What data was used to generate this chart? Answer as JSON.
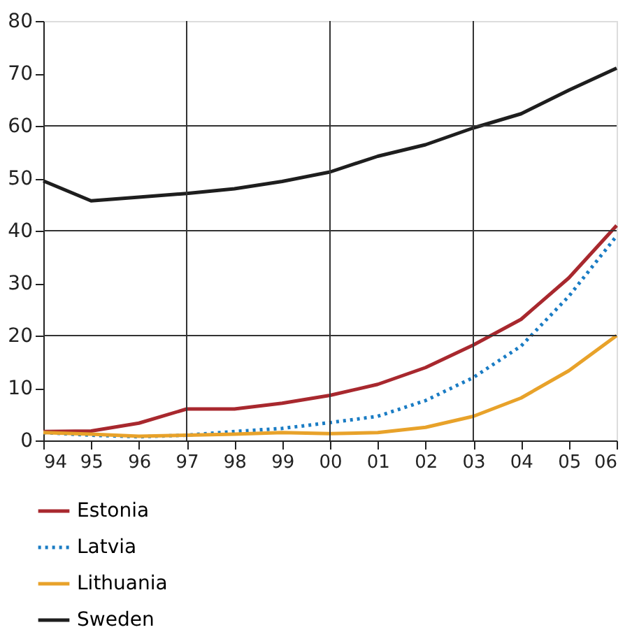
{
  "chart_data": {
    "type": "line",
    "x": [
      1994,
      1995,
      1996,
      1997,
      1998,
      1999,
      2000,
      2001,
      2002,
      2003,
      2004,
      2005,
      2006
    ],
    "xlim": [
      1994,
      2006
    ],
    "xticks": [
      {
        "value": 1994,
        "label": "94"
      },
      {
        "value": 1995,
        "label": "95"
      },
      {
        "value": 1996,
        "label": "96"
      },
      {
        "value": 1997,
        "label": "97"
      },
      {
        "value": 1998,
        "label": "98"
      },
      {
        "value": 1999,
        "label": "99"
      },
      {
        "value": 2000,
        "label": "00"
      },
      {
        "value": 2001,
        "label": "01"
      },
      {
        "value": 2002,
        "label": "02"
      },
      {
        "value": 2003,
        "label": "03"
      },
      {
        "value": 2004,
        "label": "04"
      },
      {
        "value": 2005,
        "label": "05"
      },
      {
        "value": 2006,
        "label": "06"
      }
    ],
    "ylim": [
      0,
      80
    ],
    "yticks": [
      0,
      10,
      20,
      30,
      40,
      50,
      60,
      70,
      80
    ],
    "series": [
      {
        "name": "Estonia",
        "color": "#a8282e",
        "line_style": "solid",
        "values": [
          1.7,
          1.8,
          3.3,
          6,
          6,
          7.1,
          8.6,
          10.7,
          13.9,
          18.2,
          23.1,
          31,
          41
        ]
      },
      {
        "name": "Latvia",
        "color": "#1a7cc4",
        "line_style": "dotted",
        "values": [
          1.5,
          1,
          0.7,
          1,
          1.7,
          2.3,
          3.4,
          4.6,
          7.6,
          12,
          18,
          27.5,
          39
        ]
      },
      {
        "name": "Lithuania",
        "color": "#e8a22a",
        "line_style": "solid",
        "values": [
          1.5,
          1.2,
          0.8,
          1,
          1.2,
          1.5,
          1.3,
          1.5,
          2.5,
          4.6,
          8.1,
          13.3,
          20
        ]
      },
      {
        "name": "Sweden",
        "color": "#1e1e1e",
        "line_style": "solid",
        "values": [
          49.5,
          45.7,
          46.4,
          47.1,
          48,
          49.4,
          51.2,
          54.2,
          56.4,
          59.6,
          62.3,
          66.8,
          71
        ]
      }
    ],
    "ref_lines": [
      {
        "axis": "x",
        "value": 1997,
        "color": "#333333"
      },
      {
        "axis": "x",
        "value": 2000,
        "color": "#333333"
      },
      {
        "axis": "x",
        "value": 2003,
        "color": "#333333"
      },
      {
        "axis": "y",
        "value": 20,
        "color": "#333333"
      },
      {
        "axis": "y",
        "value": 40,
        "color": "#333333"
      },
      {
        "axis": "y",
        "value": 60,
        "color": "#333333"
      }
    ],
    "grid": false,
    "legend": "bottom",
    "marker": "none"
  }
}
